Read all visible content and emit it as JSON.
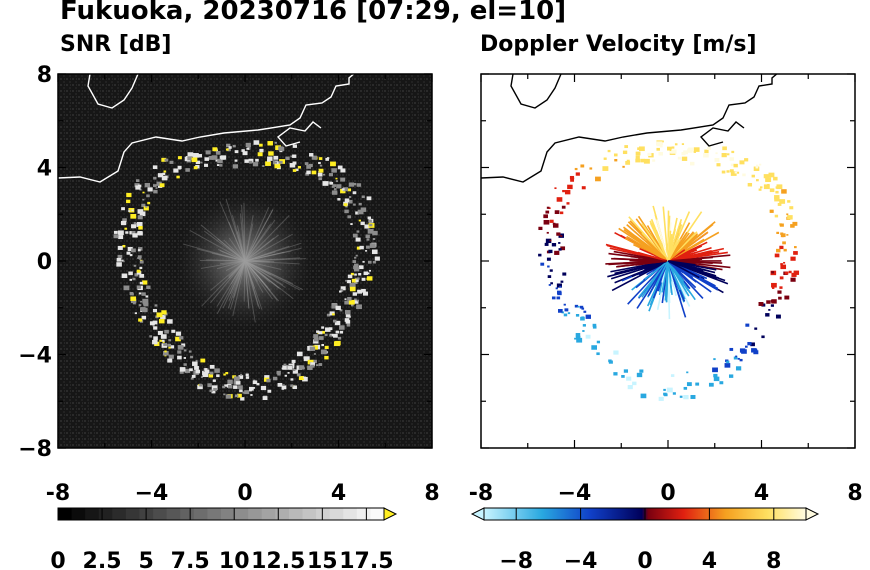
{
  "header": {
    "title": "Fukuoka, 20230716 [07:29, el=10]",
    "panel_left_title": "SNR [dB]",
    "panel_right_title": "Doppler Velocity [m/s]"
  },
  "chart_data": [
    {
      "type": "heatmap",
      "title": "SNR [dB]",
      "xlim": [
        -8,
        8
      ],
      "ylim": [
        -8,
        8
      ],
      "xticks": [
        "-8",
        "−4",
        "0",
        "4",
        "8"
      ],
      "yticks": [
        "8",
        "4",
        "0",
        "−4",
        "−8"
      ],
      "background": "#1a1a1a",
      "colorbar": {
        "range": [
          0,
          18.5
        ],
        "ticks": [
          "0",
          "2.5",
          "5",
          "7.5",
          "10",
          "12.5",
          "15",
          "17.5"
        ],
        "extend": "max",
        "colors": [
          "#000000",
          "#ffffff",
          "#ffee22"
        ]
      },
      "echo_ring_radius_km": 5.0,
      "strong_echo_color": "#ffee22"
    },
    {
      "type": "heatmap",
      "title": "Doppler Velocity [m/s]",
      "xlim": [
        -8,
        8
      ],
      "ylim": [
        -8,
        8
      ],
      "xticks": [
        "-8",
        "−4",
        "0",
        "4",
        "8"
      ],
      "yticks": [],
      "background": "#ffffff",
      "colorbar": {
        "range": [
          -10,
          10
        ],
        "ticks": [
          "−8",
          "−4",
          "0",
          "4",
          "8"
        ],
        "extend": "both",
        "colors": [
          "#c8f4ff",
          "#29a8e0",
          "#1040c8",
          "#00005a",
          "#7a0010",
          "#e02010",
          "#f5a020",
          "#ffe060",
          "#fffbe0"
        ]
      },
      "echo_ring_radius_km": 5.0
    }
  ]
}
